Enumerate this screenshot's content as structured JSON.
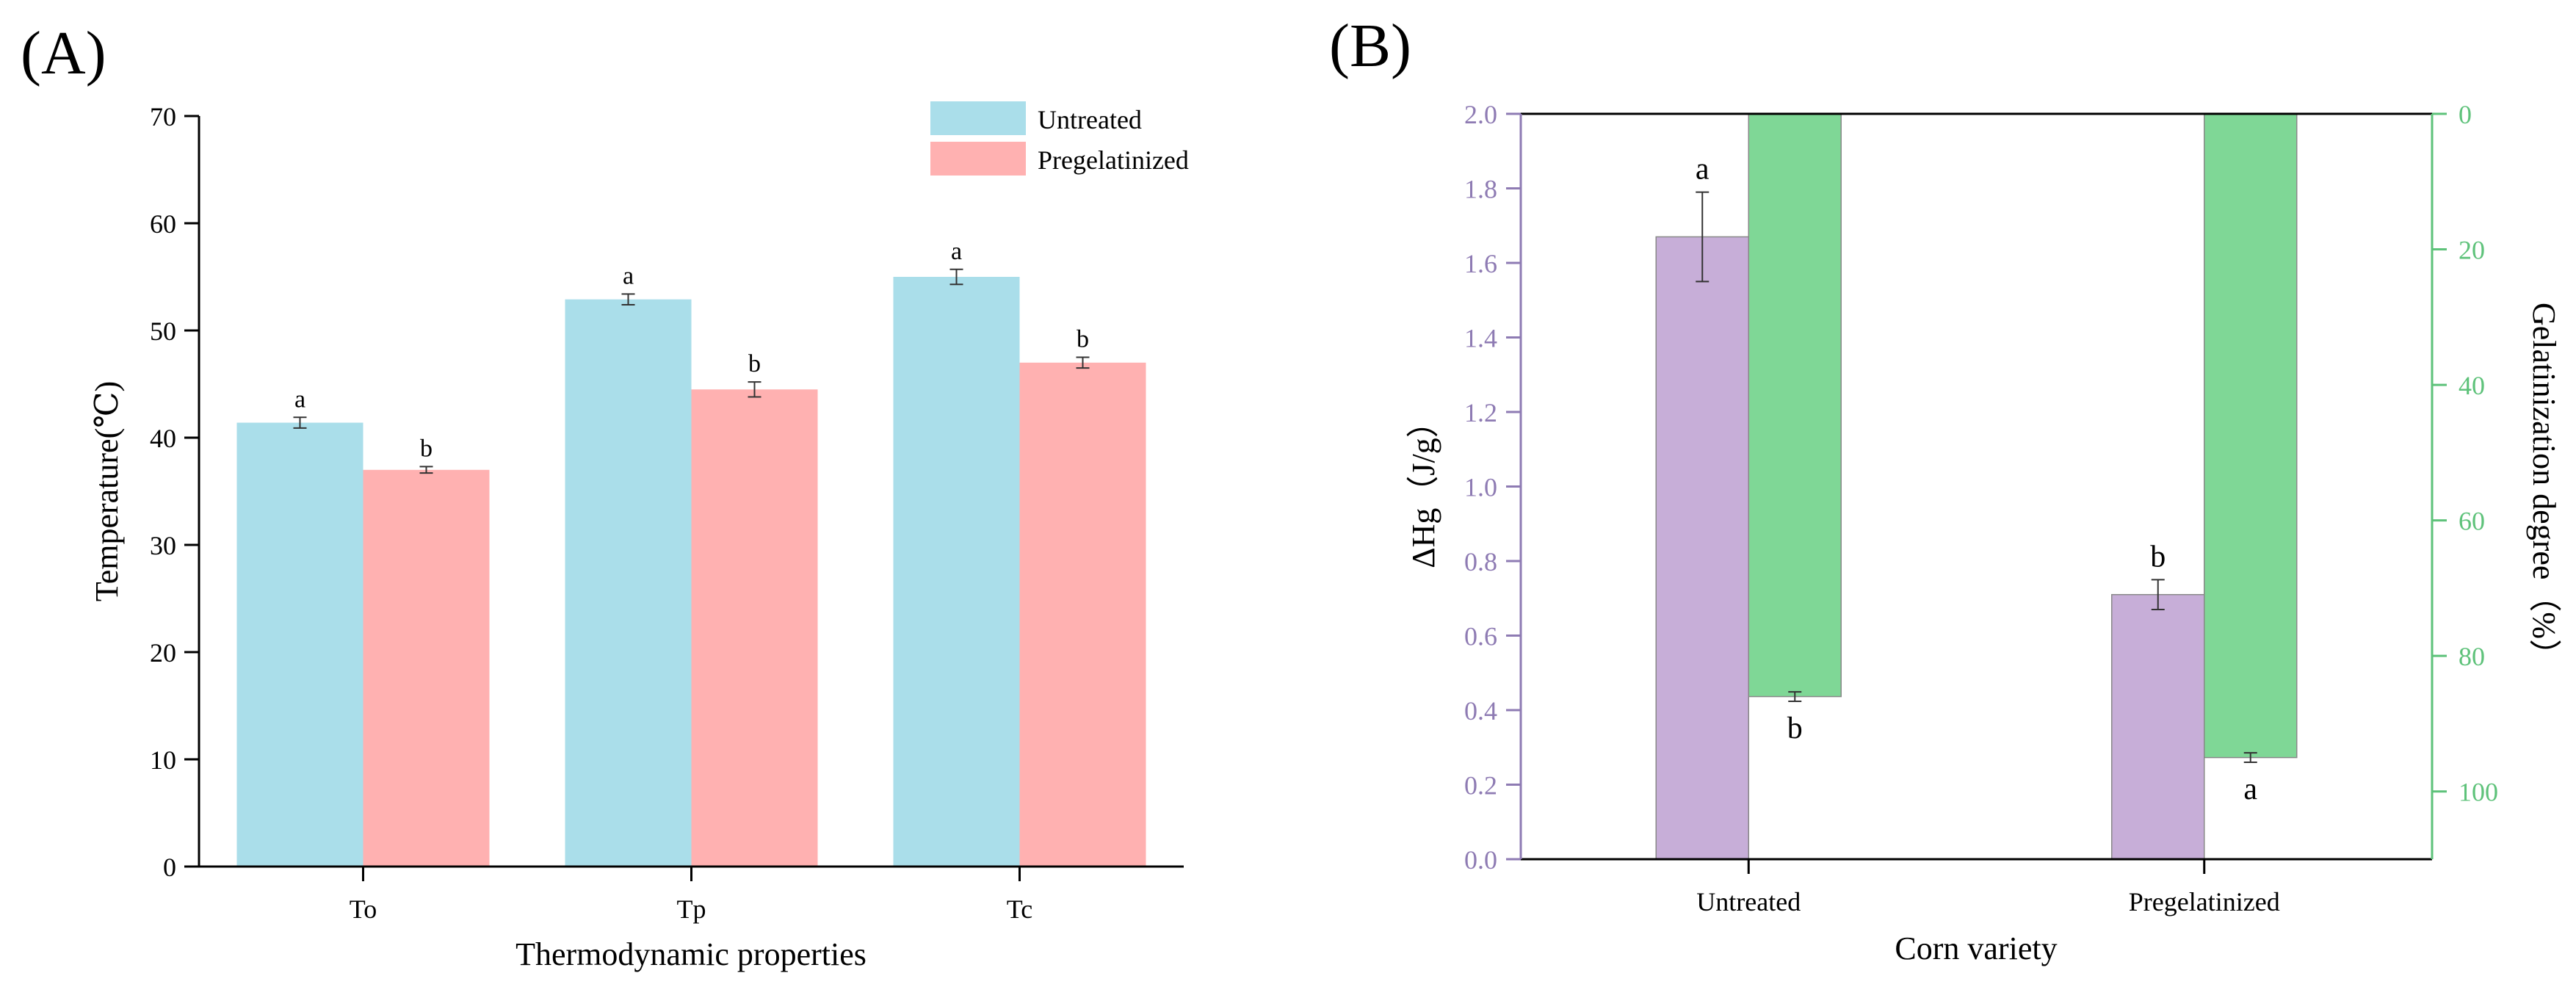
{
  "colors": {
    "untreated_a": "#aadeea",
    "pregel_a": "#ffb1b1",
    "purple": "#c7aed8",
    "green": "#7fd796",
    "purple_text": "#8e7bb3",
    "green_text": "#5ec27a",
    "axis": "#000000"
  },
  "chart_data": [
    {
      "panel_label": "(A)",
      "type": "bar",
      "categories": [
        "To",
        "Tp",
        "Tc"
      ],
      "series": [
        {
          "name": "Untreated",
          "values": [
            41.4,
            52.9,
            55.0
          ],
          "errors": [
            0.5,
            0.5,
            0.7
          ],
          "letters": [
            "a",
            "a",
            "a"
          ]
        },
        {
          "name": "Pregelatinized",
          "values": [
            37.0,
            44.5,
            47.0
          ],
          "errors": [
            0.3,
            0.7,
            0.5
          ],
          "letters": [
            "b",
            "b",
            "b"
          ]
        }
      ],
      "xlabel": "Thermodynamic properties",
      "ylabel": "Temperature(℃)",
      "ylim": [
        0,
        70
      ],
      "yticks": [
        "0",
        "10",
        "20",
        "30",
        "40",
        "50",
        "60",
        "70"
      ],
      "legend": {
        "position": "top-right",
        "entries": [
          "Untreated",
          "Pregelatinized"
        ]
      }
    },
    {
      "panel_label": "(B)",
      "type": "bar",
      "categories": [
        "Untreated",
        "Pregelatinized"
      ],
      "series": [
        {
          "name": "ΔHg",
          "axis": "left",
          "values": [
            1.67,
            0.71
          ],
          "errors": [
            0.12,
            0.04
          ],
          "letters": [
            "a",
            "b"
          ]
        },
        {
          "name": "Gelatinization degree",
          "axis": "right-inverted",
          "values": [
            86.0,
            95.0
          ],
          "errors": [
            0.7,
            0.7
          ],
          "letters": [
            "b",
            "a"
          ]
        }
      ],
      "xlabel": "Corn variety",
      "ylabel": "ΔHg（J/g）",
      "ylim": [
        0,
        2.0
      ],
      "yticks": [
        "0.0",
        "0.2",
        "0.4",
        "0.6",
        "0.8",
        "1.0",
        "1.2",
        "1.4",
        "1.6",
        "1.8",
        "2.0"
      ],
      "y2label": "Gelatinization degree（%）",
      "y2lim": [
        0,
        110
      ],
      "y2_inverted": true,
      "y2ticks": [
        "0",
        "20",
        "40",
        "60",
        "80",
        "100"
      ]
    }
  ]
}
